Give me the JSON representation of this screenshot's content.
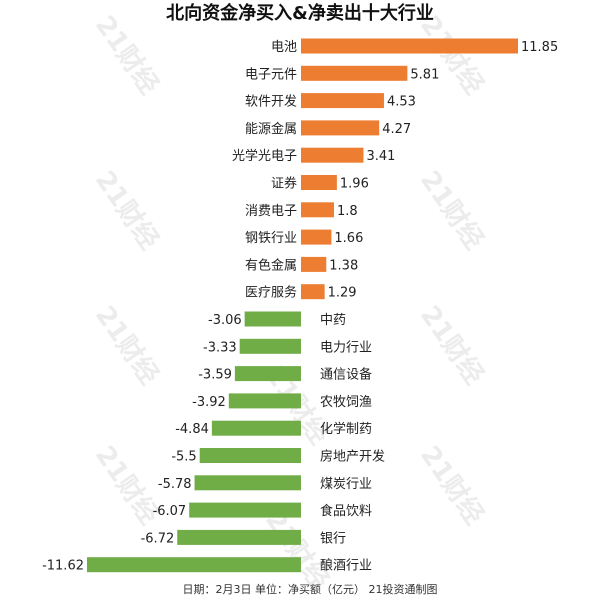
{
  "chart_data": {
    "type": "bar",
    "orientation": "horizontal",
    "title": "北向资金净买入&净卖出十大行业",
    "categories": [
      "电池",
      "电子元件",
      "软件开发",
      "能源金属",
      "光学光电子",
      "证券",
      "消费电子",
      "钢铁行业",
      "有色金属",
      "医疗服务",
      "中药",
      "电力行业",
      "通信设备",
      "农牧饲渔",
      "化学制药",
      "房地产开发",
      "煤炭行业",
      "食品饮料",
      "银行",
      "酿酒行业"
    ],
    "value_labels": [
      "11.85",
      "5.81",
      "4.53",
      "4.27",
      "3.41",
      "1.96",
      "1.8",
      "1.66",
      "1.38",
      "1.29",
      "-3.06",
      "-3.33",
      "-3.59",
      "-3.92",
      "-4.84",
      "-5.5",
      "-5.78",
      "-6.07",
      "-6.72",
      "-11.62"
    ],
    "values": [
      11.85,
      5.81,
      4.53,
      4.27,
      3.41,
      1.96,
      1.8,
      1.66,
      1.38,
      1.29,
      -3.06,
      -3.33,
      -3.59,
      -3.92,
      -4.84,
      -5.5,
      -5.78,
      -6.07,
      -6.72,
      -11.62
    ],
    "xlim": [
      -11.62,
      11.85
    ],
    "colors": {
      "positive": "#ED7D31",
      "negative": "#70AD47"
    },
    "grid": false,
    "legend": "none",
    "footer": "日期：2月3日 单位：净买额（亿元） 21投资通制图",
    "watermark": "21财经"
  }
}
